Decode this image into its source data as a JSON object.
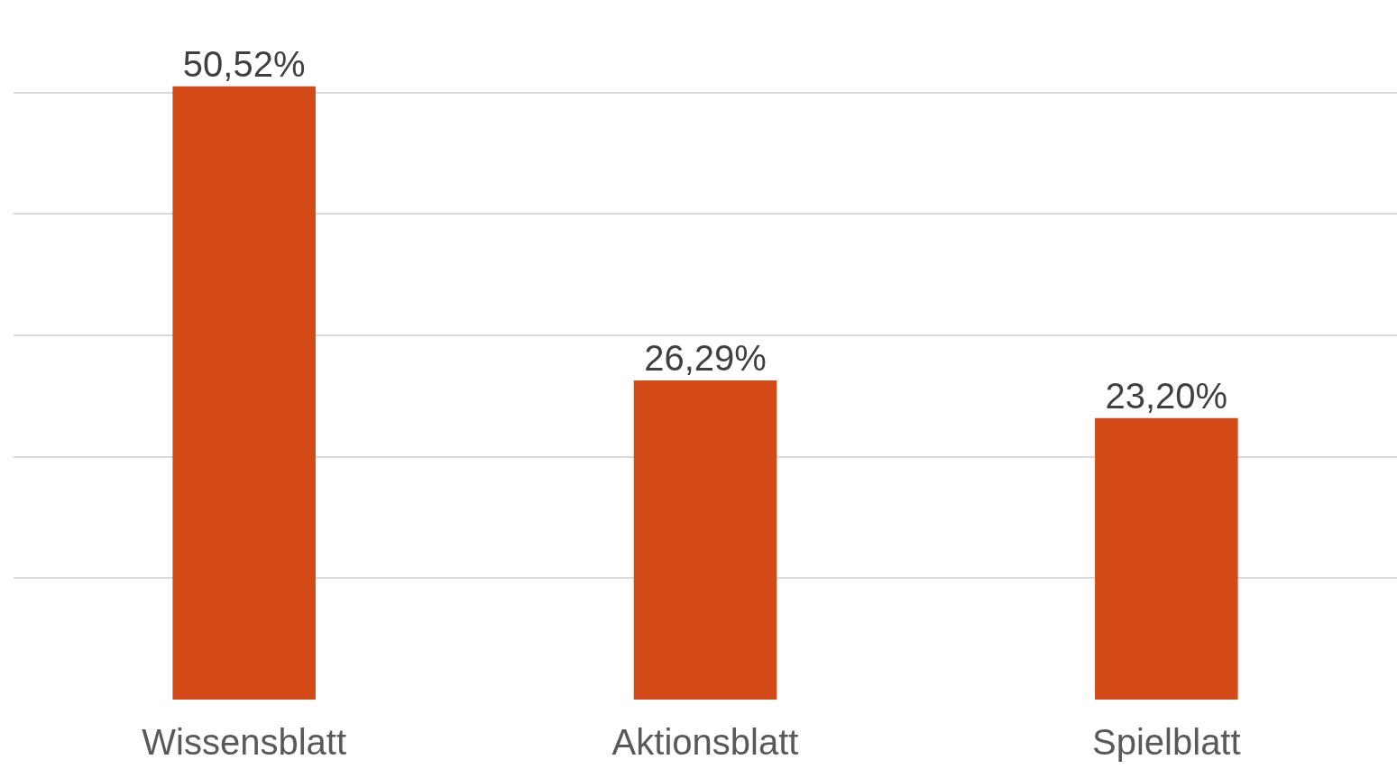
{
  "chart_data": {
    "type": "bar",
    "categories": [
      "Wissensblatt",
      "Aktionsblatt",
      "Spielblatt"
    ],
    "values": [
      50.52,
      26.29,
      23.2
    ],
    "value_labels": [
      "50,52%",
      "26,29%",
      "23,20%"
    ],
    "color": "#d34a17",
    "tick_labels": "x",
    "grid": "y"
  }
}
